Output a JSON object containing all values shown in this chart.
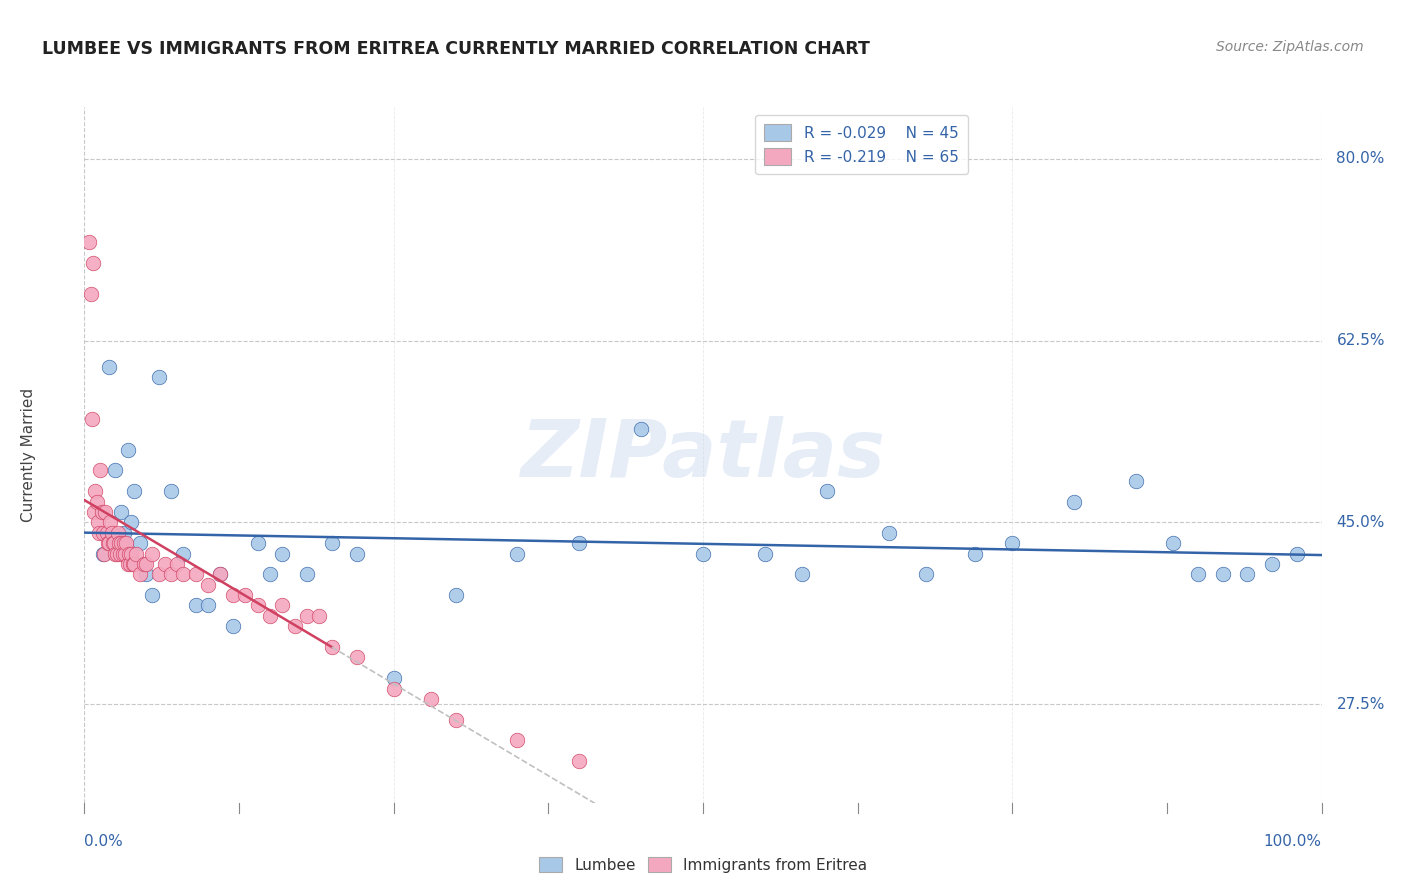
{
  "title": "LUMBEE VS IMMIGRANTS FROM ERITREA CURRENTLY MARRIED CORRELATION CHART",
  "source_text": "Source: ZipAtlas.com",
  "ylabel": "Currently Married",
  "xlim": [
    0.0,
    100.0
  ],
  "ylim": [
    18.0,
    85.0
  ],
  "yticks": [
    27.5,
    45.0,
    62.5,
    80.0
  ],
  "watermark": "ZIPatlas",
  "legend_r1": "R = -0.029",
  "legend_n1": "N = 45",
  "legend_r2": "R = -0.219",
  "legend_n2": "N = 65",
  "lumbee_color": "#a8c8e8",
  "eritrea_color": "#f4a8c0",
  "line_color_lumbee": "#3464a8",
  "line_color_eritrea": "#d04060",
  "background_color": "#ffffff",
  "grid_color": "#c8c8c8",
  "lumbee_x": [
    1.5,
    2.0,
    2.5,
    3.0,
    3.2,
    3.5,
    3.8,
    4.0,
    4.5,
    5.0,
    5.5,
    6.0,
    7.0,
    8.0,
    9.0,
    10.0,
    11.0,
    12.0,
    14.0,
    15.0,
    16.0,
    18.0,
    20.0,
    22.0,
    25.0,
    30.0,
    35.0,
    40.0,
    45.0,
    50.0,
    55.0,
    58.0,
    60.0,
    65.0,
    68.0,
    72.0,
    75.0,
    80.0,
    85.0,
    88.0,
    90.0,
    92.0,
    94.0,
    96.0,
    98.0
  ],
  "lumbee_y": [
    42.0,
    60.0,
    50.0,
    46.0,
    44.0,
    52.0,
    45.0,
    48.0,
    43.0,
    40.0,
    38.0,
    59.0,
    48.0,
    42.0,
    37.0,
    37.0,
    40.0,
    35.0,
    43.0,
    40.0,
    42.0,
    40.0,
    43.0,
    42.0,
    30.0,
    38.0,
    42.0,
    43.0,
    54.0,
    42.0,
    42.0,
    40.0,
    48.0,
    44.0,
    40.0,
    42.0,
    43.0,
    47.0,
    49.0,
    43.0,
    40.0,
    40.0,
    40.0,
    41.0,
    42.0
  ],
  "eritrea_x": [
    0.4,
    0.5,
    0.6,
    0.7,
    0.8,
    0.9,
    1.0,
    1.1,
    1.2,
    1.3,
    1.4,
    1.5,
    1.6,
    1.7,
    1.8,
    1.9,
    2.0,
    2.1,
    2.2,
    2.3,
    2.4,
    2.5,
    2.6,
    2.7,
    2.8,
    2.9,
    3.0,
    3.1,
    3.2,
    3.3,
    3.4,
    3.5,
    3.6,
    3.7,
    3.8,
    3.9,
    4.0,
    4.2,
    4.5,
    4.8,
    5.0,
    5.5,
    6.0,
    6.5,
    7.0,
    7.5,
    8.0,
    9.0,
    10.0,
    11.0,
    12.0,
    13.0,
    14.0,
    15.0,
    16.0,
    17.0,
    18.0,
    19.0,
    20.0,
    22.0,
    25.0,
    28.0,
    30.0,
    35.0,
    40.0
  ],
  "eritrea_y": [
    72.0,
    67.0,
    55.0,
    70.0,
    46.0,
    48.0,
    47.0,
    45.0,
    44.0,
    50.0,
    46.0,
    44.0,
    42.0,
    46.0,
    44.0,
    43.0,
    43.0,
    45.0,
    44.0,
    43.0,
    43.0,
    42.0,
    42.0,
    44.0,
    43.0,
    42.0,
    43.0,
    42.0,
    43.0,
    42.0,
    43.0,
    41.0,
    42.0,
    41.0,
    42.0,
    41.0,
    41.0,
    42.0,
    40.0,
    41.0,
    41.0,
    42.0,
    40.0,
    41.0,
    40.0,
    41.0,
    40.0,
    40.0,
    39.0,
    40.0,
    38.0,
    38.0,
    37.0,
    36.0,
    37.0,
    35.0,
    36.0,
    36.0,
    33.0,
    32.0,
    29.0,
    28.0,
    26.0,
    24.0,
    22.0
  ],
  "eritrea_solid_end_x": 20.0,
  "lumbee_line_start_x": 0.0,
  "lumbee_line_end_x": 100.0
}
